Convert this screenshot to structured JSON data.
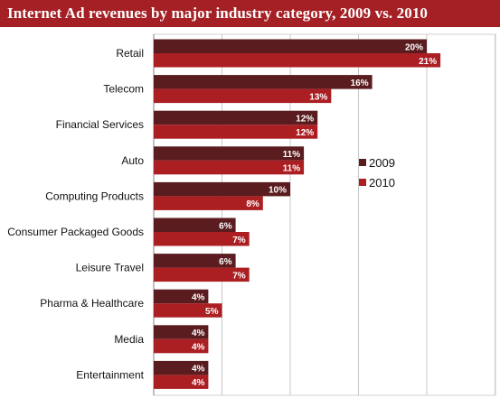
{
  "chart_data": {
    "type": "bar",
    "orientation": "horizontal",
    "title": "Internet Ad revenues by major industry category, 2009 vs. 2010",
    "categories": [
      "Retail",
      "Telecom",
      "Financial Services",
      "Auto",
      "Computing Products",
      "Consumer Packaged Goods",
      "Leisure Travel",
      "Pharma & Healthcare",
      "Media",
      "Entertainment"
    ],
    "series": [
      {
        "name": "2009",
        "color": "#5a1c1f",
        "values": [
          20,
          16,
          12,
          11,
          10,
          6,
          6,
          4,
          4,
          4
        ],
        "labels": [
          "20%",
          "16%",
          "12%",
          "11%",
          "10%",
          "6%",
          "6%",
          "4%",
          "4%",
          "4%"
        ]
      },
      {
        "name": "2010",
        "color": "#ab1f23",
        "values": [
          21,
          13,
          12,
          11,
          8,
          7,
          7,
          5,
          4,
          4
        ],
        "labels": [
          "21%",
          "13%",
          "12%",
          "11%",
          "8%",
          "7%",
          "7%",
          "5%",
          "4%",
          "4%"
        ]
      }
    ],
    "xlim": [
      0,
      25
    ],
    "grid": true,
    "legend_position": "right-middle"
  }
}
